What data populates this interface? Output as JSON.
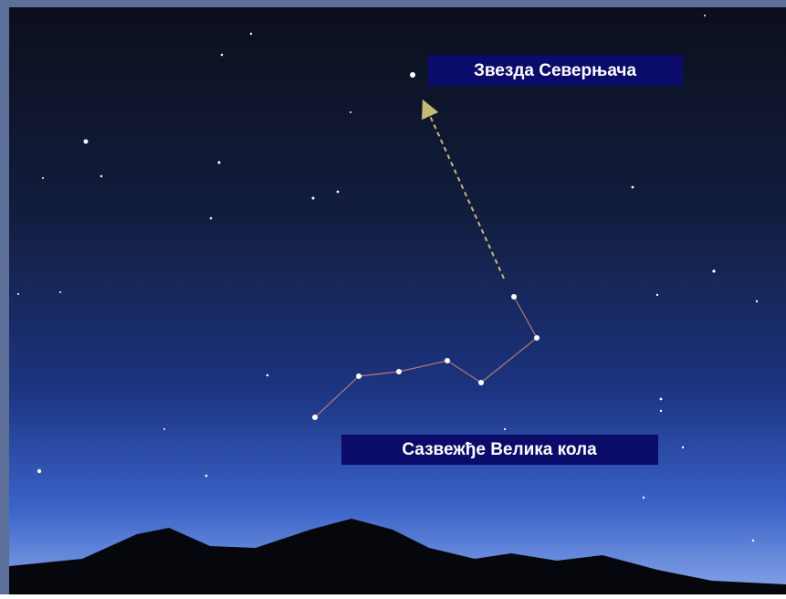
{
  "labels": {
    "polar_star": "Звезда Северњача",
    "constellation": "Сазвежђе Велика кола"
  }
}
